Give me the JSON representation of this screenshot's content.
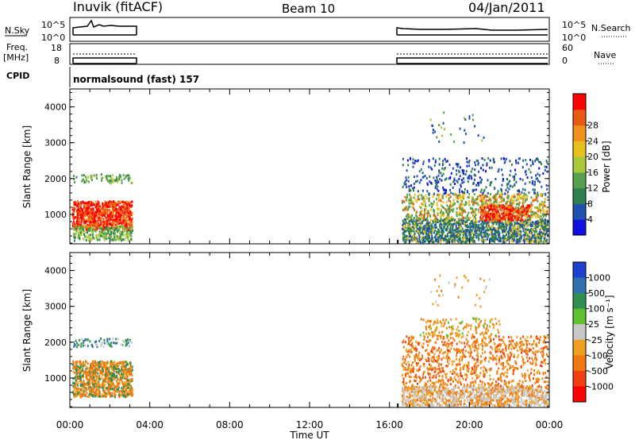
{
  "header": {
    "station": "Inuvik (fitACF)",
    "beam": "Beam 10",
    "date": "04/Jan/2011"
  },
  "side_labels": {
    "nsky": "N.Sky",
    "freq": "Freq.",
    "freq_unit": "[MHz]",
    "cpid": "CPID",
    "nsearch": "N.Search",
    "nave": "Nave",
    "nsky_ticks": [
      "10^5",
      "10^0"
    ],
    "nsearch_ticks": [
      "10^5",
      "10^0"
    ],
    "freq_ticks": [
      "18",
      "8"
    ],
    "nave_ticks": [
      "60",
      "0"
    ]
  },
  "cpid_text": "normalsound (fast) 157",
  "colors": {
    "power_scale": [
      "#1010e0",
      "#2050b0",
      "#2f7f4f",
      "#56a050",
      "#a8c83a",
      "#e8c020",
      "#f0901a",
      "#e85a10",
      "#ff0000"
    ],
    "velocity_scale": [
      "#ff0000",
      "#f04010",
      "#f07a10",
      "#f0a020",
      "#c8c8c8",
      "#60c030",
      "#2f8f4f",
      "#3070b0",
      "#2040d0"
    ]
  },
  "chart_data": [
    {
      "type": "heatmap",
      "panel": "power",
      "ylabel": "Slant Range [km]",
      "xlabel": "",
      "yticks": [
        "1000",
        "2000",
        "3000",
        "4000"
      ],
      "ylim": [
        180,
        4500
      ],
      "x_ticks": [
        "00:00",
        "04:00",
        "08:00",
        "12:00",
        "16:00",
        "20:00",
        "00:00"
      ],
      "colorbar_label": "Power [dB]",
      "colorbar_ticks": [
        "4",
        "8",
        "12",
        "16",
        "20",
        "24",
        "28"
      ],
      "data_windows": [
        {
          "start": "00:00",
          "end": "03:10"
        },
        {
          "start": "16:35",
          "end": "24:00"
        }
      ]
    },
    {
      "type": "heatmap",
      "panel": "velocity",
      "ylabel": "Slant Range [km]",
      "xlabel": "Time UT",
      "yticks": [
        "1000",
        "2000",
        "3000",
        "4000"
      ],
      "ylim": [
        180,
        4500
      ],
      "x_ticks": [
        "00:00",
        "04:00",
        "08:00",
        "12:00",
        "16:00",
        "20:00",
        "00:00"
      ],
      "colorbar_label": "Velocity [m s⁻¹]",
      "colorbar_ticks": [
        "1000",
        "500",
        "100",
        "25",
        "-25",
        "-100",
        "-500",
        "-1000"
      ],
      "data_windows": [
        {
          "start": "00:00",
          "end": "03:10"
        },
        {
          "start": "16:35",
          "end": "24:00"
        }
      ]
    }
  ]
}
